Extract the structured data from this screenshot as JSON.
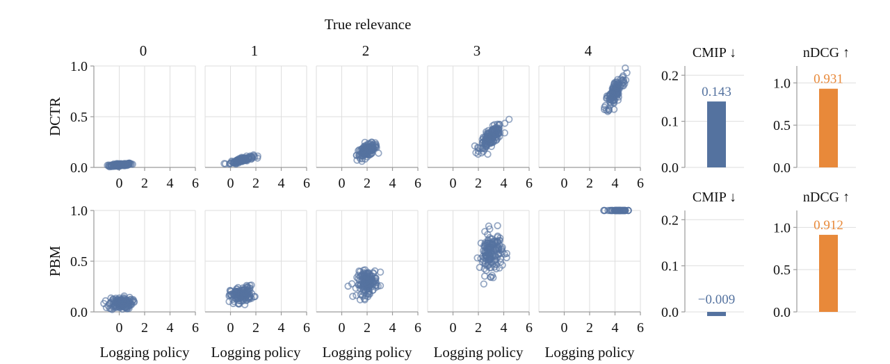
{
  "figure": {
    "supertitle": "True relevance",
    "column_titles": [
      "0",
      "1",
      "2",
      "3",
      "4"
    ],
    "row_labels": [
      "DCTR",
      "PBM"
    ],
    "xlabel": "Logging policy",
    "point_color": "#5672a0",
    "cmip_color": "#54729f",
    "ndcg_color": "#e8893a",
    "grid_color": "#dedede",
    "axis_color": "#9a9a9a"
  },
  "chart_data": [
    {
      "type": "scatter",
      "name": "relevance-scatter-grid",
      "xlabel": "Logging policy",
      "xlim": [
        -2,
        6
      ],
      "ylim": [
        0,
        1
      ],
      "xticks": [
        0,
        2,
        4,
        6
      ],
      "yticks": [
        0.0,
        0.5,
        1.0
      ],
      "grid": true,
      "panels": [
        {
          "row": "DCTR",
          "col": "0",
          "x_center": 0.1,
          "x_spread": 0.45,
          "y_center": 0.025,
          "y_spread": 0.008,
          "corr": 0.6,
          "n": 130,
          "x_min": -1.6,
          "x_max": 2.0,
          "y_min": 0.0,
          "y_max": 1.0
        },
        {
          "row": "DCTR",
          "col": "1",
          "x_center": 0.9,
          "x_spread": 0.45,
          "y_center": 0.075,
          "y_spread": 0.018,
          "corr": 0.8,
          "n": 130,
          "x_min": -0.5,
          "x_max": 2.7,
          "y_min": 0.01,
          "y_max": 1.0
        },
        {
          "row": "DCTR",
          "col": "2",
          "x_center": 2.0,
          "x_spread": 0.4,
          "y_center": 0.165,
          "y_spread": 0.035,
          "corr": 0.6,
          "n": 140,
          "x_min": 0.7,
          "x_max": 3.1,
          "y_min": 0.06,
          "y_max": 1.0
        },
        {
          "row": "DCTR",
          "col": "3",
          "x_center": 3.0,
          "x_spread": 0.45,
          "y_center": 0.3,
          "y_spread": 0.06,
          "corr": 0.75,
          "n": 150,
          "x_min": 1.6,
          "x_max": 4.5,
          "y_min": 0.13,
          "y_max": 1.0
        },
        {
          "row": "DCTR",
          "col": "4",
          "x_center": 4.0,
          "x_spread": 0.4,
          "y_center": 0.74,
          "y_spread": 0.09,
          "corr": 0.8,
          "n": 130,
          "x_min": 3.0,
          "x_max": 5.8,
          "y_min": 0.4,
          "y_max": 0.98
        },
        {
          "row": "PBM",
          "col": "0",
          "x_center": 0.1,
          "x_spread": 0.45,
          "y_center": 0.085,
          "y_spread": 0.03,
          "corr": 0.1,
          "n": 140,
          "x_min": -1.6,
          "x_max": 2.0,
          "y_min": 0.0,
          "y_max": 1.0
        },
        {
          "row": "PBM",
          "col": "1",
          "x_center": 0.9,
          "x_spread": 0.45,
          "y_center": 0.17,
          "y_spread": 0.04,
          "corr": 0.2,
          "n": 140,
          "x_min": -0.5,
          "x_max": 2.7,
          "y_min": 0.05,
          "y_max": 1.0
        },
        {
          "row": "PBM",
          "col": "2",
          "x_center": 2.0,
          "x_spread": 0.4,
          "y_center": 0.29,
          "y_spread": 0.06,
          "corr": 0.2,
          "n": 150,
          "x_min": 0.5,
          "x_max": 3.2,
          "y_min": 0.12,
          "y_max": 1.0
        },
        {
          "row": "PBM",
          "col": "3",
          "x_center": 3.0,
          "x_spread": 0.45,
          "y_center": 0.58,
          "y_spread": 0.1,
          "corr": 0.1,
          "n": 150,
          "x_min": 1.8,
          "x_max": 4.5,
          "y_min": 0.25,
          "y_max": 0.97
        },
        {
          "row": "PBM",
          "col": "4",
          "x_center": 4.3,
          "x_spread": 0.45,
          "y_center": 1.0,
          "y_spread": 0.0,
          "corr": 0.0,
          "n": 60,
          "x_min": 3.0,
          "x_max": 5.8,
          "y_min": 1.0,
          "y_max": 1.0
        }
      ]
    },
    {
      "type": "bar",
      "name": "metric-bars",
      "panels": [
        {
          "row": "DCTR",
          "title": "CMIP ↓",
          "value": 0.143,
          "label": "0.143",
          "ylim": [
            0,
            0.22
          ],
          "yticks": [
            "0.0",
            "0.1",
            "0.2"
          ],
          "color": "#54729f"
        },
        {
          "row": "DCTR",
          "title": "nDCG ↑",
          "value": 0.931,
          "label": "0.931",
          "ylim": [
            0,
            1.2
          ],
          "yticks": [
            "0.0",
            "0.5",
            "1.0"
          ],
          "color": "#e8893a"
        },
        {
          "row": "PBM",
          "title": "CMIP ↓",
          "value": -0.009,
          "label": "−0.009",
          "ylim": [
            0,
            0.22
          ],
          "yticks": [
            "0.0",
            "0.1",
            "0.2"
          ],
          "color": "#54729f"
        },
        {
          "row": "PBM",
          "title": "nDCG ↑",
          "value": 0.912,
          "label": "0.912",
          "ylim": [
            0,
            1.2
          ],
          "yticks": [
            "0.0",
            "0.5",
            "1.0"
          ],
          "color": "#e8893a"
        }
      ]
    }
  ]
}
